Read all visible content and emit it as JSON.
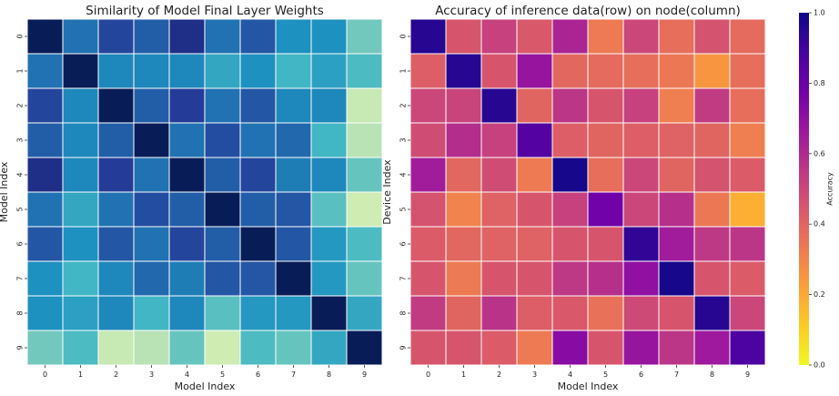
{
  "chart_data": [
    {
      "type": "heatmap",
      "title": "Similarity of Model Final Layer Weights",
      "xlabel": "Model Index",
      "ylabel": "Model Index",
      "x_categories": [
        "0",
        "1",
        "2",
        "3",
        "4",
        "5",
        "6",
        "7",
        "8",
        "9"
      ],
      "y_categories": [
        "0",
        "1",
        "2",
        "3",
        "4",
        "5",
        "6",
        "7",
        "8",
        "9"
      ],
      "colormap": "YlGnBu",
      "colorbar": false,
      "vrange": [
        0.6,
        1.0
      ],
      "values": [
        [
          1.0,
          0.88,
          0.93,
          0.9,
          0.96,
          0.88,
          0.91,
          0.85,
          0.85,
          0.76
        ],
        [
          0.88,
          1.0,
          0.86,
          0.86,
          0.86,
          0.82,
          0.85,
          0.8,
          0.83,
          0.79
        ],
        [
          0.93,
          0.86,
          1.0,
          0.9,
          0.94,
          0.88,
          0.91,
          0.86,
          0.86,
          0.7
        ],
        [
          0.9,
          0.86,
          0.9,
          1.0,
          0.88,
          0.92,
          0.88,
          0.89,
          0.8,
          0.71
        ],
        [
          0.96,
          0.86,
          0.94,
          0.88,
          1.0,
          0.9,
          0.93,
          0.87,
          0.86,
          0.77
        ],
        [
          0.88,
          0.82,
          0.88,
          0.92,
          0.9,
          1.0,
          0.9,
          0.91,
          0.78,
          0.69
        ],
        [
          0.91,
          0.85,
          0.91,
          0.88,
          0.93,
          0.9,
          1.0,
          0.91,
          0.84,
          0.79
        ],
        [
          0.85,
          0.8,
          0.86,
          0.89,
          0.87,
          0.91,
          0.91,
          1.0,
          0.84,
          0.77
        ],
        [
          0.85,
          0.83,
          0.86,
          0.8,
          0.86,
          0.78,
          0.84,
          0.84,
          1.0,
          0.82
        ],
        [
          0.76,
          0.79,
          0.7,
          0.71,
          0.77,
          0.69,
          0.79,
          0.77,
          0.82,
          1.0
        ]
      ]
    },
    {
      "type": "heatmap",
      "title": "Accuracy of inference data(row) on node(column)",
      "xlabel": "Model Index",
      "ylabel": "Device Index",
      "x_categories": [
        "0",
        "1",
        "2",
        "3",
        "4",
        "5",
        "6",
        "7",
        "8",
        "9"
      ],
      "y_categories": [
        "0",
        "1",
        "2",
        "3",
        "4",
        "5",
        "6",
        "7",
        "8",
        "9"
      ],
      "colormap": "plasma_r",
      "vrange": [
        0.0,
        1.0
      ],
      "colorbar": {
        "label": "Accuracy",
        "ticks": [
          "1.0",
          "0.8",
          "0.6",
          "0.4",
          "0.2",
          "0.0"
        ]
      },
      "values": [
        [
          0.95,
          0.45,
          0.52,
          0.44,
          0.62,
          0.33,
          0.5,
          0.37,
          0.46,
          0.38
        ],
        [
          0.42,
          0.95,
          0.45,
          0.68,
          0.39,
          0.38,
          0.37,
          0.34,
          0.25,
          0.37
        ],
        [
          0.5,
          0.51,
          0.95,
          0.4,
          0.56,
          0.45,
          0.52,
          0.32,
          0.54,
          0.37
        ],
        [
          0.48,
          0.59,
          0.52,
          0.85,
          0.42,
          0.4,
          0.42,
          0.41,
          0.4,
          0.32
        ],
        [
          0.65,
          0.39,
          0.48,
          0.33,
          0.98,
          0.37,
          0.5,
          0.4,
          0.46,
          0.43
        ],
        [
          0.46,
          0.3,
          0.41,
          0.45,
          0.52,
          0.78,
          0.5,
          0.58,
          0.34,
          0.18
        ],
        [
          0.43,
          0.39,
          0.41,
          0.41,
          0.45,
          0.45,
          0.93,
          0.65,
          0.55,
          0.56
        ],
        [
          0.45,
          0.33,
          0.45,
          0.45,
          0.55,
          0.58,
          0.7,
          0.98,
          0.45,
          0.43
        ],
        [
          0.54,
          0.4,
          0.57,
          0.42,
          0.44,
          0.36,
          0.49,
          0.45,
          0.95,
          0.5
        ],
        [
          0.45,
          0.45,
          0.43,
          0.33,
          0.72,
          0.45,
          0.68,
          0.56,
          0.66,
          0.87
        ]
      ]
    }
  ]
}
